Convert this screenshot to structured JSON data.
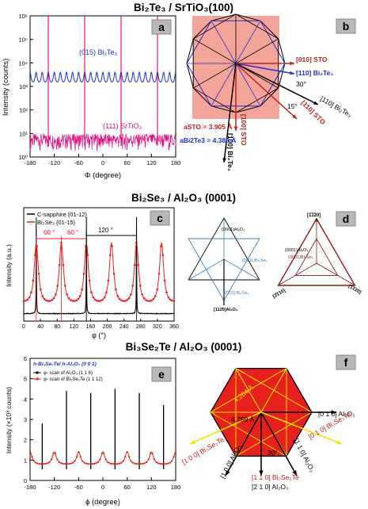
{
  "sections": {
    "top": {
      "title": "Bi₂Te₃ / SrTiO₃(100)"
    },
    "middle": {
      "title": "Bi₂Se₃ / Al₂O₃ (0001)"
    },
    "bottom": {
      "title": "Bi₃Se₂Te / Al₂O₃ (0001)"
    }
  },
  "panels": {
    "a": {
      "badge": "a",
      "series1_label": "(015) Bi₂Te₃",
      "series2_label": "(111) SrTiO₃",
      "xlabel": "Φ (degree)",
      "ylabel": "Intensity (counts)",
      "yticks": [
        "10⁰",
        "10¹",
        "10²",
        "10³",
        "10⁴",
        "10⁵",
        "10⁶"
      ],
      "xticks": [
        "-180",
        "-120",
        "-60",
        "0",
        "60",
        "120",
        "180"
      ]
    },
    "b": {
      "badge": "b",
      "lbl_010": "[010] STO",
      "lbl_110_bt": "[110] Bi₂Te₃",
      "lbl_30": "30°",
      "lbl_110_bt2": "[110] Bi₂Te₃",
      "lbl_15": "15°",
      "lbl_110_sto": "[110] STO",
      "lbl_100_sto": "[100] STO",
      "lbl_100_bt": "[100] Bi₂Te₃",
      "lbl_asto": "aSTO = 3.905 Å",
      "lbl_abt": "aBi2Te3 = 4.386 Å"
    },
    "c": {
      "badge": "c",
      "legend1": "C-sapphire {01-12}",
      "legend2": "Bi₂Se₃ {01-15}",
      "ann60a": "60 °",
      "ann60b": "60 °",
      "ann120": "120 °",
      "xlabel": "φ (°)",
      "ylabel": "Intensity (a.u.)",
      "xticks": [
        "0",
        "40",
        "80",
        "120",
        "160",
        "200",
        "240",
        "280",
        "320",
        "360"
      ]
    },
    "d": {
      "badge": "d",
      "l_al": "(0001)Al₂O₃",
      "l_bs": "(0001)Bi₂Se₃",
      "l_2110": "[2̄110] Bi₂Se₃",
      "l_1120": "[112̄0]Al₂O₃",
      "r_top": "[1̄1̄20]",
      "r_al": "(0001)Al₂O₃",
      "r_bs": "(0001)Bi₂Se₃",
      "r_left": "[2̄1̄10]",
      "r_right": "[1̄1̄20]"
    },
    "e": {
      "badge": "e",
      "title_line": "h-Bi₃Se₂Te/ h-Al₂O₃ (0 0 1)",
      "legend1": "φ- scan of Al₂O₃ (1 1 6)",
      "legend2": "φ- scan of Bi₃Se₂Te (1 1 12)",
      "xlabel": "ϕ (degree)",
      "ylabel": "Intensity (×10³ counts)",
      "yticks": [
        "0",
        "1",
        "2",
        "3",
        "4",
        "5",
        "6"
      ],
      "xticks": [
        "-180",
        "-120",
        "-60",
        "0",
        "60",
        "120",
        "180"
      ]
    },
    "f": {
      "badge": "f",
      "lbl_4264": "4.264 Å",
      "lbl_4759": "4.759 Å",
      "lbl_010_al": "[0 1 0] Al₂O₃",
      "lbl_100_bst": "[1 0 0] Bi₃Se₂Te",
      "lbl_010_bst": "[0 1 0] Bi₃Se₂Te",
      "lbl_100_al": "[1 0 0] Al₂O₃",
      "lbl_110_al": "[1 1 0] Al₂O₃",
      "lbl_30": "30°",
      "lbl_110_bst": "[1 1 0] Bi₃Se₂Te",
      "lbl_210_al": "[2 1 0] Al₂O₃"
    }
  },
  "colors": {
    "blue": "#1f2fd6",
    "magenta": "#e0117e",
    "red": "#e8201c",
    "salmon": "#f4a59a",
    "darkred": "#8b1a1a",
    "black": "#000000",
    "steel": "#3c7fb0",
    "yellow": "#f2e600"
  },
  "chart_data": [
    {
      "type": "line",
      "id": "a",
      "ylog": true,
      "xlim": [
        -180,
        180
      ],
      "ylim": [
        1,
        1000000
      ],
      "series": [
        {
          "name": "(015) Bi₂Te₃",
          "peaks_x": [
            -165,
            -150,
            -135,
            -120,
            -105,
            -90,
            -75,
            -60,
            -45,
            -30,
            -15,
            0,
            15,
            30,
            45,
            60,
            75,
            90,
            105,
            120,
            135,
            150,
            165,
            180
          ],
          "peak_y": 4000,
          "base_y": 1000
        },
        {
          "name": "(111) SrTiO₃",
          "peaks_x": [
            -135,
            -45,
            45,
            135
          ],
          "peak_y": 1000000,
          "base_y": 3
        }
      ]
    },
    {
      "type": "line",
      "id": "c",
      "xlim": [
        0,
        360
      ],
      "series": [
        {
          "name": "C-sapphire {01-12}",
          "peaks_x": [
            30,
            150,
            270
          ],
          "peak_rel": 0.85
        },
        {
          "name": "Bi₂Se₃ {01-15}",
          "peaks_x": [
            30,
            90,
            150,
            210,
            270,
            330
          ],
          "peak_rel": 0.62
        }
      ]
    },
    {
      "type": "line",
      "id": "e",
      "xlim": [
        -180,
        180
      ],
      "ylim": [
        0,
        6
      ],
      "series": [
        {
          "name": "φ- scan of Al₂O₃ (1 1 6)",
          "peaks_x": [
            -150,
            -90,
            -30,
            30,
            90,
            150
          ],
          "peak_y": [
            2.8,
            4.4,
            4.3,
            4.5,
            4.3,
            3.7
          ]
        },
        {
          "name": "φ- scan of Bi₃Se₂Te (1 1 12)",
          "peaks_x": [
            -120,
            -60,
            0,
            60,
            120,
            180
          ],
          "peak_y": 1.4,
          "base_y": 0.75
        }
      ]
    }
  ]
}
